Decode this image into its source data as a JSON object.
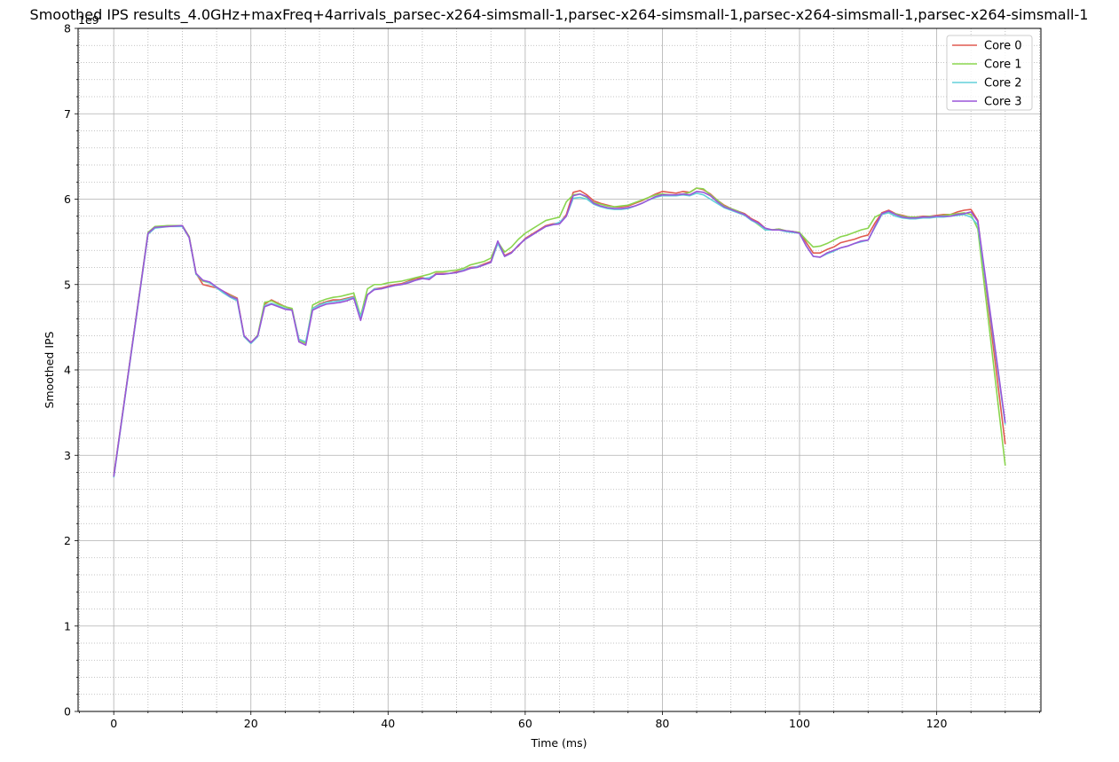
{
  "chart_data": {
    "type": "line",
    "title": "Smoothed IPS results_4.0GHz+maxFreq+4arrivals_parsec-x264-simsmall-1,parsec-x264-simsmall-1,parsec-x264-simsmall-1,parsec-x264-simsmall-1",
    "xlabel": "Time (ms)",
    "ylabel": "Smoothed IPS",
    "y_multiplier_label": "1e9",
    "xlim": [
      -5.2,
      135.2
    ],
    "ylim": [
      0,
      8
    ],
    "x_ticks": [
      0,
      20,
      40,
      60,
      80,
      100,
      120
    ],
    "x_tick_labels": [
      "0",
      "20",
      "40",
      "60",
      "80",
      "100",
      "120"
    ],
    "y_ticks": [
      0,
      1,
      2,
      3,
      4,
      5,
      6,
      7,
      8
    ],
    "y_tick_labels": [
      "0",
      "1",
      "2",
      "3",
      "4",
      "5",
      "6",
      "7",
      "8"
    ],
    "grid": true,
    "minor_grid": true,
    "legend_position": "top-right",
    "x": [
      0,
      5,
      6,
      8,
      10,
      11,
      12,
      13,
      14,
      15,
      16,
      17,
      18,
      19,
      20,
      21,
      22,
      23,
      24,
      25,
      26,
      27,
      28,
      29,
      30,
      31,
      32,
      33,
      34,
      35,
      36,
      37,
      38,
      39,
      40,
      41,
      42,
      43,
      44,
      45,
      46,
      47,
      48,
      49,
      50,
      51,
      52,
      53,
      54,
      55,
      56,
      57,
      58,
      59,
      60,
      61,
      62,
      63,
      64,
      65,
      66,
      67,
      68,
      69,
      70,
      71,
      72,
      73,
      74,
      75,
      76,
      77,
      78,
      79,
      80,
      81,
      82,
      83,
      84,
      85,
      86,
      87,
      88,
      89,
      90,
      91,
      92,
      93,
      94,
      95,
      96,
      97,
      98,
      99,
      100,
      101,
      102,
      103,
      104,
      105,
      106,
      107,
      108,
      109,
      110,
      111,
      112,
      113,
      114,
      115,
      116,
      117,
      118,
      119,
      120,
      121,
      122,
      123,
      124,
      125,
      126,
      130
    ],
    "series": [
      {
        "name": "Core 0",
        "color": "#e05a50",
        "values": [
          2.76,
          5.6,
          5.67,
          5.69,
          5.69,
          5.56,
          5.13,
          5.0,
          4.98,
          4.96,
          4.92,
          4.88,
          4.84,
          4.4,
          4.32,
          4.4,
          4.77,
          4.82,
          4.78,
          4.74,
          4.71,
          4.36,
          4.31,
          4.72,
          4.77,
          4.8,
          4.82,
          4.82,
          4.84,
          4.86,
          4.6,
          4.88,
          4.95,
          4.96,
          4.98,
          5.0,
          5.01,
          5.04,
          5.07,
          5.08,
          5.06,
          5.13,
          5.13,
          5.13,
          5.15,
          5.17,
          5.2,
          5.21,
          5.24,
          5.27,
          5.5,
          5.34,
          5.38,
          5.45,
          5.54,
          5.59,
          5.64,
          5.69,
          5.71,
          5.72,
          5.82,
          6.08,
          6.1,
          6.05,
          5.98,
          5.95,
          5.93,
          5.91,
          5.91,
          5.92,
          5.95,
          5.98,
          6.02,
          6.06,
          6.09,
          6.08,
          6.07,
          6.09,
          6.08,
          6.13,
          6.11,
          6.06,
          5.99,
          5.93,
          5.89,
          5.86,
          5.83,
          5.77,
          5.73,
          5.66,
          5.64,
          5.65,
          5.63,
          5.62,
          5.61,
          5.49,
          5.37,
          5.37,
          5.41,
          5.44,
          5.49,
          5.51,
          5.53,
          5.56,
          5.58,
          5.72,
          5.84,
          5.87,
          5.83,
          5.81,
          5.79,
          5.79,
          5.8,
          5.8,
          5.81,
          5.82,
          5.82,
          5.85,
          5.87,
          5.88,
          5.75,
          3.13
        ]
      },
      {
        "name": "Core 1",
        "color": "#8ad54f",
        "values": [
          2.75,
          5.61,
          5.68,
          5.69,
          5.69,
          5.56,
          5.12,
          5.04,
          5.02,
          4.97,
          4.91,
          4.87,
          4.83,
          4.39,
          4.31,
          4.41,
          4.79,
          4.81,
          4.77,
          4.74,
          4.72,
          4.35,
          4.31,
          4.76,
          4.8,
          4.83,
          4.85,
          4.86,
          4.88,
          4.9,
          4.63,
          4.95,
          5.0,
          5.0,
          5.02,
          5.03,
          5.04,
          5.06,
          5.08,
          5.1,
          5.12,
          5.15,
          5.15,
          5.16,
          5.17,
          5.19,
          5.23,
          5.25,
          5.27,
          5.31,
          5.5,
          5.38,
          5.44,
          5.53,
          5.6,
          5.65,
          5.7,
          5.75,
          5.77,
          5.79,
          5.97,
          6.05,
          6.06,
          6.02,
          5.96,
          5.94,
          5.92,
          5.91,
          5.92,
          5.93,
          5.96,
          5.99,
          6.02,
          6.05,
          6.06,
          6.05,
          6.05,
          6.06,
          6.08,
          6.13,
          6.12,
          6.05,
          5.99,
          5.92,
          5.89,
          5.86,
          5.82,
          5.76,
          5.7,
          5.64,
          5.64,
          5.65,
          5.63,
          5.62,
          5.61,
          5.52,
          5.44,
          5.45,
          5.48,
          5.52,
          5.56,
          5.58,
          5.61,
          5.64,
          5.66,
          5.79,
          5.83,
          5.85,
          5.83,
          5.8,
          5.79,
          5.79,
          5.79,
          5.8,
          5.8,
          5.81,
          5.82,
          5.83,
          5.84,
          5.82,
          5.65,
          2.88
        ]
      },
      {
        "name": "Core 2",
        "color": "#62d0da",
        "values": [
          2.74,
          5.59,
          5.66,
          5.68,
          5.68,
          5.55,
          5.12,
          5.05,
          5.02,
          4.96,
          4.9,
          4.85,
          4.81,
          4.39,
          4.31,
          4.39,
          4.75,
          4.78,
          4.75,
          4.72,
          4.7,
          4.36,
          4.33,
          4.72,
          4.76,
          4.79,
          4.8,
          4.81,
          4.83,
          4.85,
          4.62,
          4.88,
          4.95,
          4.95,
          4.97,
          4.99,
          5.0,
          5.03,
          5.05,
          5.07,
          5.08,
          5.12,
          5.12,
          5.13,
          5.14,
          5.17,
          5.19,
          5.21,
          5.23,
          5.26,
          5.48,
          5.33,
          5.37,
          5.46,
          5.53,
          5.58,
          5.63,
          5.68,
          5.7,
          5.73,
          5.8,
          6.01,
          6.02,
          6.0,
          5.94,
          5.91,
          5.89,
          5.88,
          5.88,
          5.89,
          5.92,
          5.95,
          5.99,
          6.02,
          6.04,
          6.04,
          6.04,
          6.05,
          6.04,
          6.07,
          6.05,
          6.0,
          5.95,
          5.9,
          5.87,
          5.84,
          5.81,
          5.75,
          5.71,
          5.64,
          5.64,
          5.64,
          5.62,
          5.61,
          5.6,
          5.45,
          5.33,
          5.32,
          5.36,
          5.39,
          5.43,
          5.45,
          5.48,
          5.5,
          5.52,
          5.67,
          5.82,
          5.84,
          5.8,
          5.78,
          5.77,
          5.77,
          5.78,
          5.78,
          5.79,
          5.79,
          5.8,
          5.81,
          5.82,
          5.79,
          5.7,
          3.36
        ]
      },
      {
        "name": "Core 3",
        "color": "#9a55d8",
        "values": [
          2.75,
          5.6,
          5.67,
          5.68,
          5.69,
          5.55,
          5.13,
          5.05,
          5.03,
          4.97,
          4.92,
          4.86,
          4.83,
          4.4,
          4.32,
          4.4,
          4.74,
          4.77,
          4.74,
          4.71,
          4.7,
          4.33,
          4.29,
          4.7,
          4.74,
          4.77,
          4.78,
          4.79,
          4.81,
          4.84,
          4.58,
          4.88,
          4.94,
          4.95,
          4.97,
          4.99,
          5.0,
          5.02,
          5.05,
          5.07,
          5.06,
          5.12,
          5.12,
          5.13,
          5.14,
          5.16,
          5.19,
          5.2,
          5.23,
          5.26,
          5.51,
          5.33,
          5.37,
          5.46,
          5.53,
          5.58,
          5.63,
          5.68,
          5.7,
          5.71,
          5.8,
          6.04,
          6.06,
          6.03,
          5.95,
          5.92,
          5.9,
          5.89,
          5.89,
          5.9,
          5.92,
          5.95,
          5.99,
          6.03,
          6.05,
          6.05,
          6.05,
          6.06,
          6.05,
          6.09,
          6.08,
          6.04,
          5.97,
          5.91,
          5.88,
          5.85,
          5.82,
          5.76,
          5.72,
          5.66,
          5.64,
          5.64,
          5.63,
          5.62,
          5.6,
          5.45,
          5.33,
          5.32,
          5.37,
          5.4,
          5.43,
          5.45,
          5.48,
          5.51,
          5.52,
          5.68,
          5.83,
          5.86,
          5.82,
          5.79,
          5.78,
          5.78,
          5.79,
          5.79,
          5.8,
          5.8,
          5.8,
          5.82,
          5.83,
          5.85,
          5.74,
          3.38
        ]
      }
    ]
  }
}
